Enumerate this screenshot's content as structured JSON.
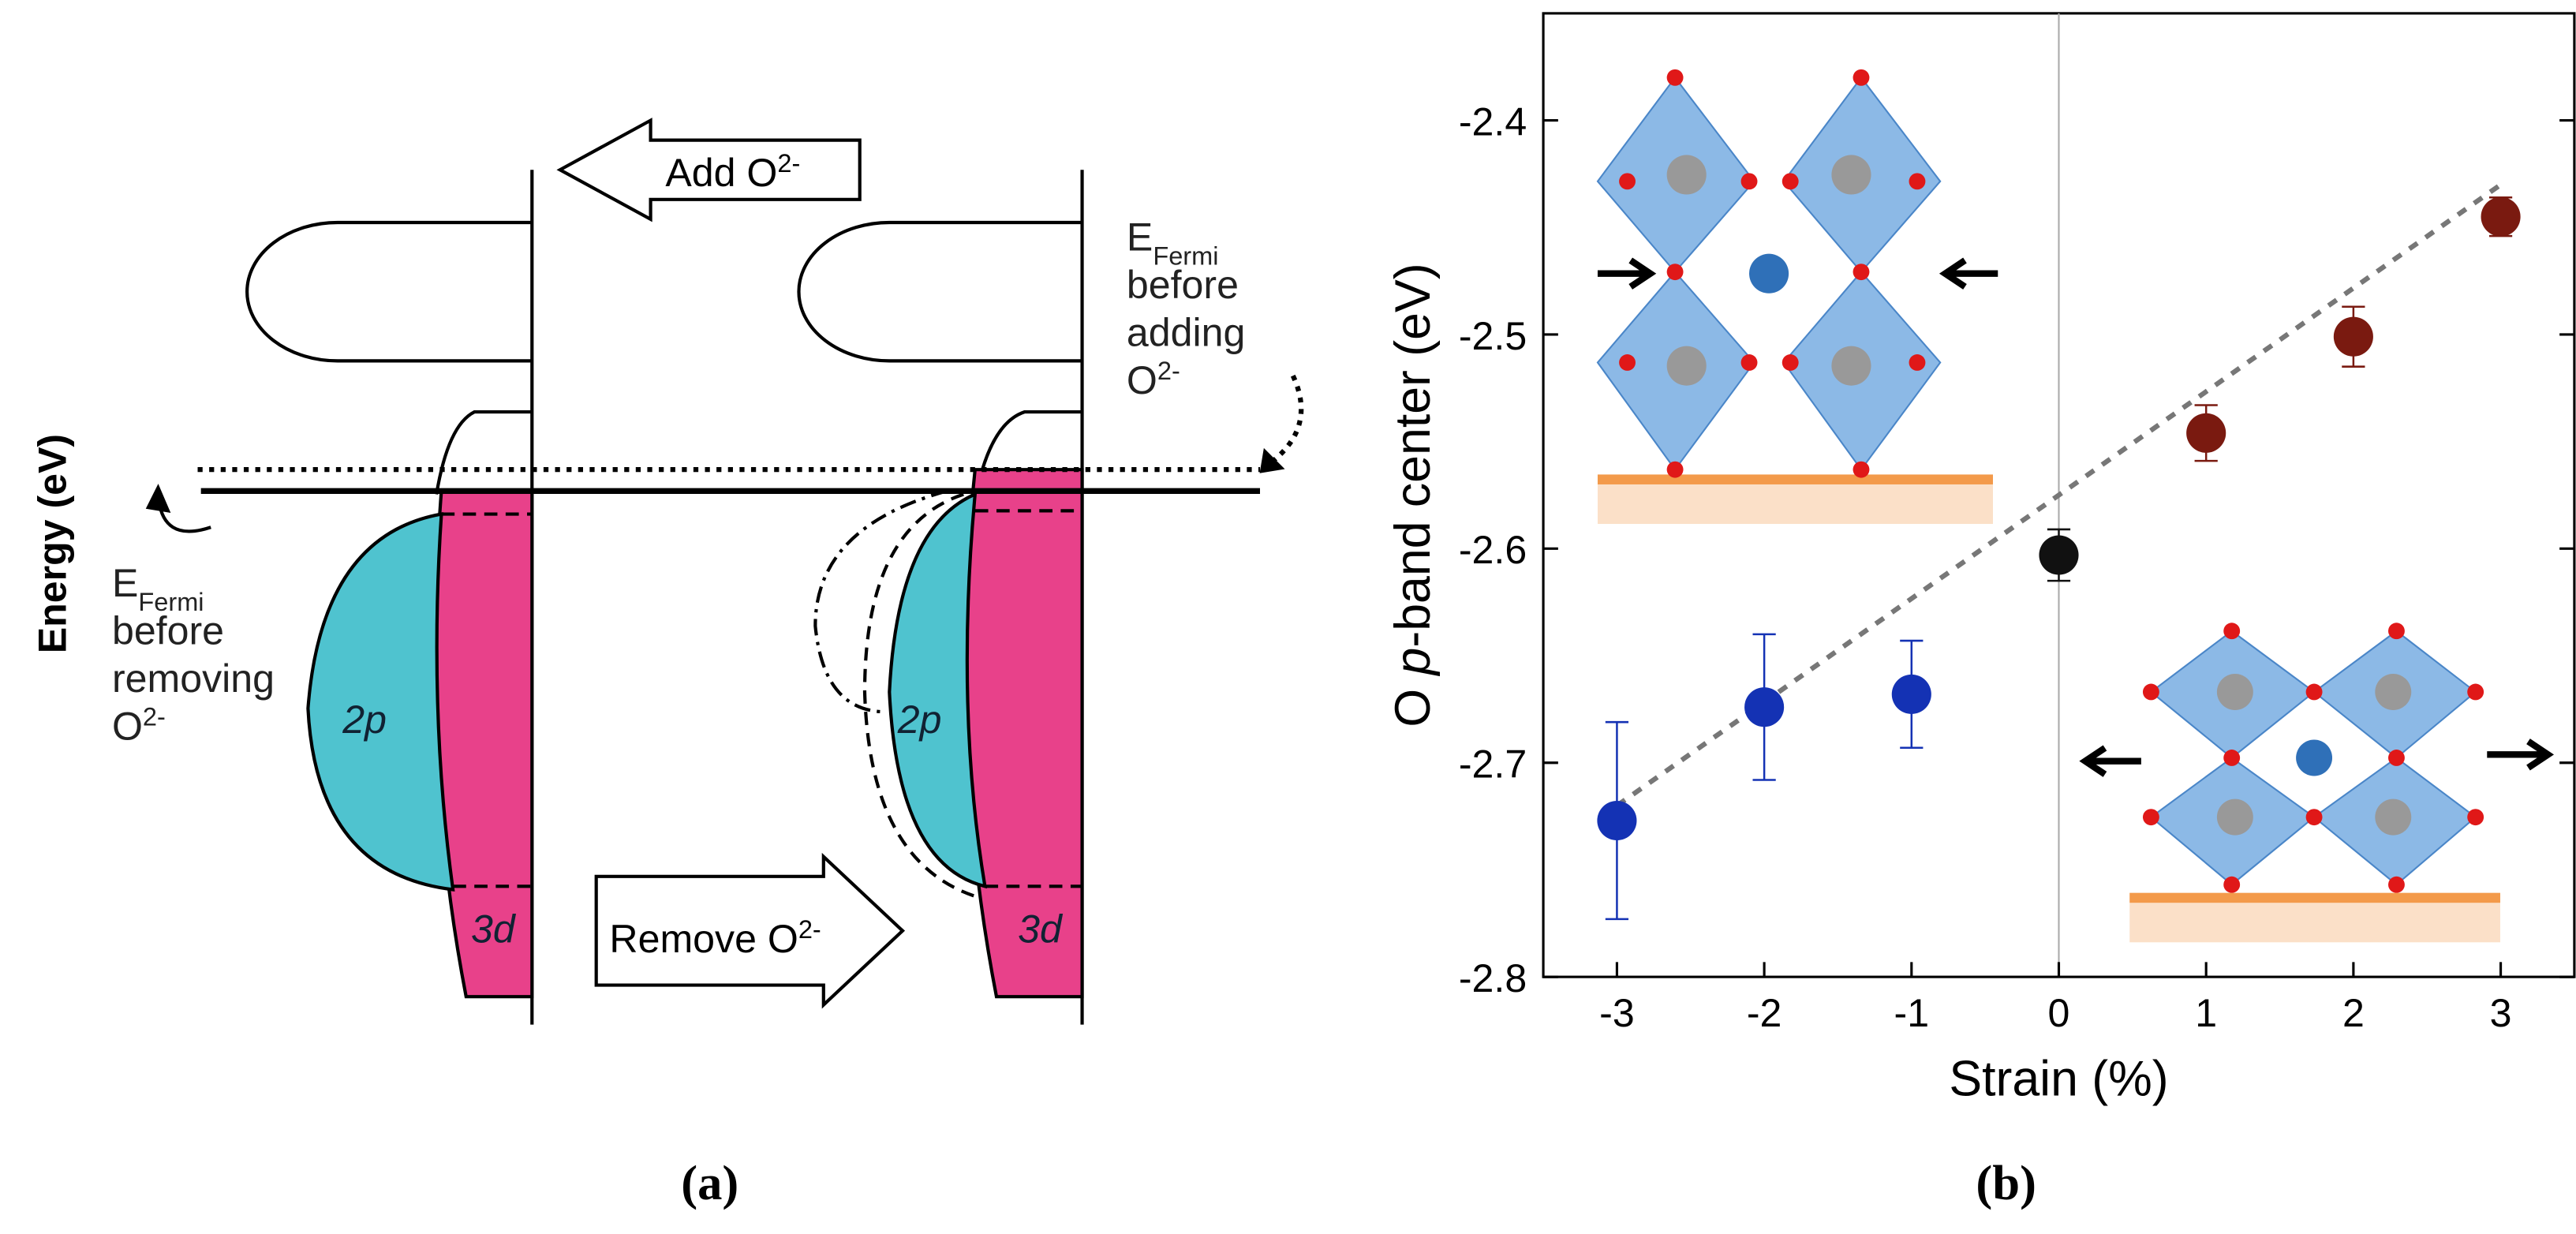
{
  "diagram": {
    "y_label": "Energy (eV)",
    "add_arrow": [
      "Add O",
      "2-"
    ],
    "remove_arrow": [
      "Remove O",
      "2-"
    ],
    "fermi_after": {
      "e": [
        "E",
        "Fermi"
      ],
      "lines": [
        "before",
        "adding"
      ],
      "ion": [
        "O",
        "2-"
      ]
    },
    "fermi_before": {
      "e": [
        "E",
        "Fermi"
      ],
      "lines": [
        "before",
        "removing"
      ],
      "ion": [
        "O",
        "2-"
      ]
    },
    "left_bands": [
      "2p",
      "3d"
    ],
    "right_bands": [
      "2p",
      "3d"
    ]
  },
  "chart_data": {
    "type": "scatter",
    "x": [
      -3,
      -2,
      -1,
      0,
      1,
      2,
      3
    ],
    "values": [
      -2.727,
      -2.674,
      -2.668,
      -2.603,
      -2.546,
      -2.501,
      -2.445
    ],
    "errors": [
      0.046,
      0.034,
      0.025,
      0.012,
      0.013,
      0.014,
      0.009
    ],
    "point_colors": [
      "#1432b4",
      "#1432b4",
      "#1432b4",
      "#111111",
      "#7a1a10",
      "#7a1a10",
      "#7a1a10"
    ],
    "fit_line": {
      "x": [
        -3,
        3
      ],
      "y": [
        -2.72,
        -2.43
      ]
    },
    "xlabel": "Strain (%)",
    "ylabel": [
      "O ",
      "p",
      "-band center (eV)"
    ],
    "xlim": [
      -3.5,
      3.5
    ],
    "ylim": [
      -2.8,
      -2.35
    ],
    "xticks": [
      -3,
      -2,
      -1,
      0,
      1,
      2,
      3
    ],
    "yticks": [
      -2.8,
      -2.7,
      -2.6,
      -2.5,
      -2.4
    ]
  },
  "captions": [
    "(a)",
    "(b)"
  ]
}
